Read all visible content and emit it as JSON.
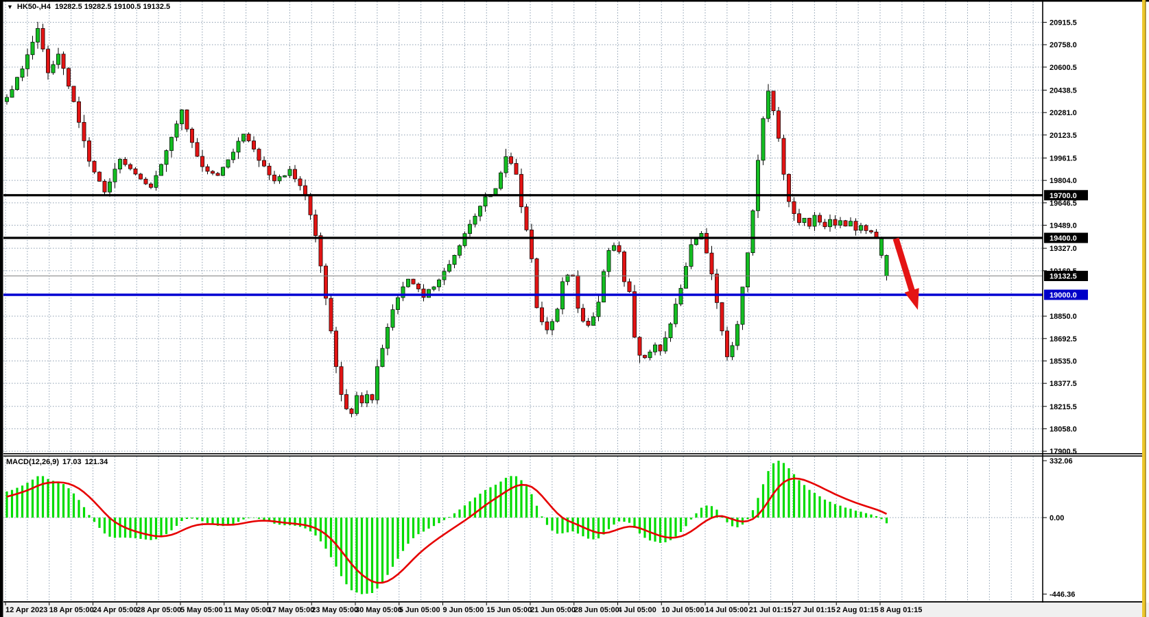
{
  "window": {
    "symbol_period": "HK50-,H4",
    "ohlc_display": "19282.5 19282.5 19100.5 19132.5",
    "dropdown_icon": "triangle-down"
  },
  "macd_panel": {
    "label": "MACD(12,26,9)",
    "macd_value": "17.03",
    "signal_value": "121.34"
  },
  "chart_data": {
    "type": "candlestick",
    "symbol": "HK50-",
    "timeframe": "H4",
    "last_candle": {
      "open": 19282.5,
      "high": 19282.5,
      "low": 19100.5,
      "close": 19132.5
    },
    "candle_count": 172,
    "price_axis": {
      "ticks": [
        20915.5,
        20758.0,
        20600.5,
        20438.5,
        20281.0,
        20123.5,
        19961.5,
        19804.0,
        19646.5,
        19489.0,
        19327.0,
        19169.5,
        18850.0,
        18692.5,
        18535.0,
        18377.5,
        18215.5,
        18058.0,
        17900.5
      ],
      "highlighted": [
        {
          "value": "19700.0",
          "price": 19700.0,
          "style": "black"
        },
        {
          "value": "19400.0",
          "price": 19400.0,
          "style": "black"
        },
        {
          "value": "19132.5",
          "price": 19132.5,
          "style": "black"
        },
        {
          "value": "19000.0",
          "price": 19000.0,
          "style": "blue"
        }
      ]
    },
    "levels": [
      {
        "price": 19700.0,
        "color": "#000000",
        "width": 3.2,
        "name": "resistance-19700"
      },
      {
        "price": 19400.0,
        "color": "#000000",
        "width": 3.2,
        "name": "support-19400"
      },
      {
        "price": 19000.0,
        "color": "#0000d2",
        "width": 3.6,
        "name": "blue-level-19000"
      },
      {
        "price": 19132.5,
        "color": "#808080",
        "width": 1.0,
        "name": "current-price-line"
      }
    ],
    "time_axis": [
      "12 Apr 2023",
      "18 Apr 05:00",
      "24 Apr 05:00",
      "28 Apr 05:00",
      "5 May 05:00",
      "11 May 05:00",
      "17 May 05:00",
      "23 May 05:00",
      "30 May 05:00",
      "5 Jun 05:00",
      "9 Jun 05:00",
      "15 Jun 05:00",
      "21 Jun 05:00",
      "28 Jun 05:00",
      "4 Jul 05:00",
      "10 Jul 05:00",
      "14 Jul 05:00",
      "21 Jul 01:15",
      "27 Jul 01:15",
      "2 Aug 01:15",
      "8 Aug 01:15"
    ],
    "price_path_keypoints": [
      [
        -20,
        19750
      ],
      [
        -10,
        20050
      ],
      [
        0,
        20380
      ],
      [
        3,
        20600
      ],
      [
        6,
        20880
      ],
      [
        8,
        20560
      ],
      [
        10,
        20700
      ],
      [
        13,
        20350
      ],
      [
        16,
        19950
      ],
      [
        19,
        19720
      ],
      [
        22,
        19960
      ],
      [
        25,
        19840
      ],
      [
        28,
        19760
      ],
      [
        31,
        20010
      ],
      [
        34,
        20290
      ],
      [
        36,
        20060
      ],
      [
        38,
        19890
      ],
      [
        41,
        19850
      ],
      [
        44,
        20000
      ],
      [
        46,
        20140
      ],
      [
        49,
        19950
      ],
      [
        52,
        19800
      ],
      [
        55,
        19870
      ],
      [
        58,
        19700
      ],
      [
        60,
        19420
      ],
      [
        62,
        18980
      ],
      [
        64,
        18500
      ],
      [
        65,
        18300
      ],
      [
        66,
        18190
      ],
      [
        67,
        18160
      ],
      [
        68,
        18280
      ],
      [
        69,
        18230
      ],
      [
        70,
        18300
      ],
      [
        71,
        18260
      ],
      [
        72,
        18500
      ],
      [
        75,
        18900
      ],
      [
        78,
        19120
      ],
      [
        81,
        18990
      ],
      [
        84,
        19100
      ],
      [
        87,
        19280
      ],
      [
        90,
        19500
      ],
      [
        93,
        19680
      ],
      [
        95,
        19740
      ],
      [
        97,
        19980
      ],
      [
        99,
        19850
      ],
      [
        100,
        19630
      ],
      [
        101,
        19450
      ],
      [
        102,
        19250
      ],
      [
        103,
        18900
      ],
      [
        104,
        18800
      ],
      [
        105,
        18760
      ],
      [
        106,
        18810
      ],
      [
        107,
        18900
      ],
      [
        108,
        19100
      ],
      [
        109,
        19150
      ],
      [
        110,
        19130
      ],
      [
        111,
        18900
      ],
      [
        112,
        18820
      ],
      [
        113,
        18790
      ],
      [
        114,
        18850
      ],
      [
        115,
        18960
      ],
      [
        116,
        19170
      ],
      [
        117,
        19300
      ],
      [
        118,
        19345
      ],
      [
        119,
        19290
      ],
      [
        120,
        19100
      ],
      [
        121,
        19030
      ],
      [
        122,
        18700
      ],
      [
        123,
        18580
      ],
      [
        124,
        18560
      ],
      [
        125,
        18600
      ],
      [
        126,
        18650
      ],
      [
        127,
        18600
      ],
      [
        128,
        18700
      ],
      [
        129,
        18800
      ],
      [
        131,
        19050
      ],
      [
        133,
        19350
      ],
      [
        135,
        19430
      ],
      [
        136,
        19300
      ],
      [
        137,
        19150
      ],
      [
        138,
        18950
      ],
      [
        139,
        18750
      ],
      [
        140,
        18560
      ],
      [
        141,
        18650
      ],
      [
        142,
        18800
      ],
      [
        143,
        19050
      ],
      [
        144,
        19300
      ],
      [
        145,
        19600
      ],
      [
        146,
        19950
      ],
      [
        147,
        20250
      ],
      [
        148,
        20430
      ],
      [
        149,
        20300
      ],
      [
        150,
        20100
      ],
      [
        151,
        19850
      ],
      [
        152,
        19650
      ],
      [
        153,
        19560
      ],
      [
        154,
        19500
      ],
      [
        155,
        19540
      ],
      [
        156,
        19490
      ],
      [
        157,
        19550
      ],
      [
        158,
        19510
      ],
      [
        159,
        19470
      ],
      [
        160,
        19520
      ],
      [
        161,
        19490
      ],
      [
        162,
        19530
      ],
      [
        163,
        19480
      ],
      [
        164,
        19510
      ],
      [
        165,
        19460
      ],
      [
        166,
        19490
      ],
      [
        167,
        19450
      ],
      [
        168,
        19430
      ],
      [
        169,
        19400
      ],
      [
        170,
        19277
      ],
      [
        171,
        19132.5
      ]
    ],
    "macd": {
      "params": {
        "fast": 12,
        "slow": 26,
        "signal": 9
      },
      "scale_max": 332.06,
      "scale_min": -446.36,
      "axis_labels": [
        "332.06",
        "0.00",
        "-446.36"
      ],
      "current_macd": 17.03,
      "current_signal": 121.34
    },
    "annotation_arrow": {
      "from": [
        1306,
        348
      ],
      "to": [
        1338,
        452
      ],
      "color": "#e41414",
      "direction": "down-right"
    }
  },
  "colors": {
    "candle_up": "#14be22",
    "candle_down": "#e21414",
    "wick": "#000000",
    "candle_outline": "#000000",
    "macd_bar": "#00dc00",
    "macd_line": "#e60000",
    "grid": "#8c9eb0",
    "axis_text": "#000000",
    "label_box_black": "#000000",
    "label_box_blue": "#0000c8",
    "label_box_text": "#ffffff",
    "panel_border": "#000000",
    "date_strip_bg": "#f0f0f0",
    "yellow_strip": "#edc72c",
    "yellow_strip_edge": "#8a6d00",
    "background": "#ffffff"
  }
}
